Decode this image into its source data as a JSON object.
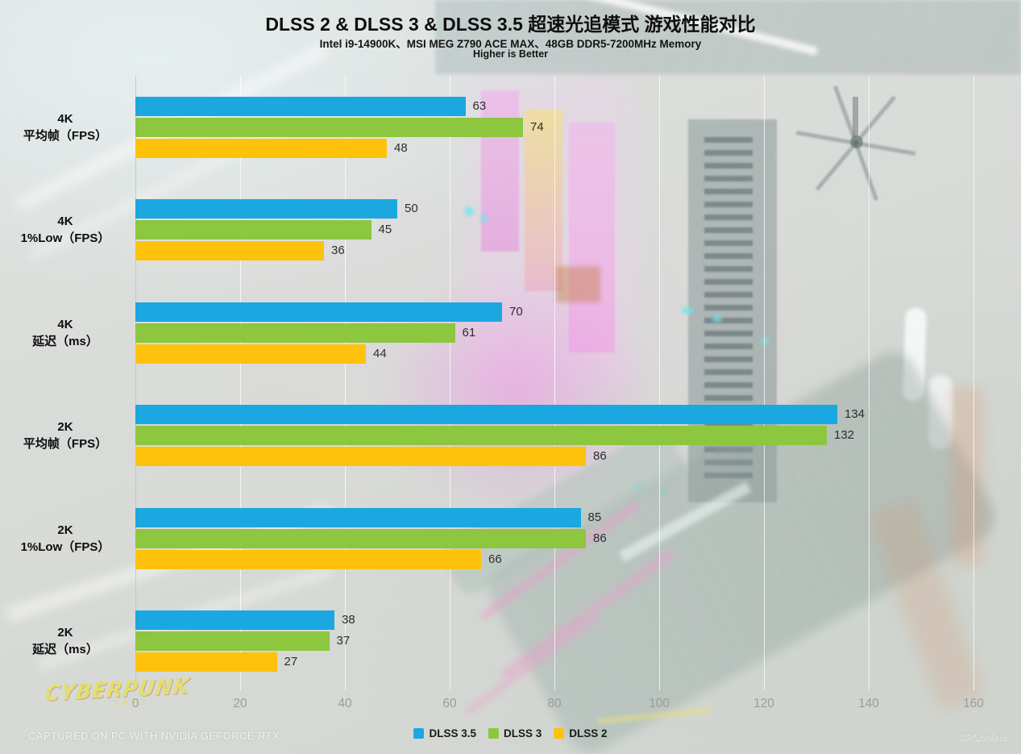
{
  "header": {
    "title": "DLSS 2 & DLSS 3 & DLSS 3.5 超速光追模式 游戏性能对比",
    "subtitle": "Intel i9-14900K、MSI MEG Z790 ACE MAX、48GB DDR5-7200MHz Memory",
    "note": "Higher is Better"
  },
  "chart_data": {
    "type": "bar",
    "orientation": "horizontal",
    "title": "DLSS 2 & DLSS 3 & DLSS 3.5 超速光追模式 游戏性能对比",
    "categories": [
      {
        "line1": "4K",
        "line2": "平均帧（FPS）"
      },
      {
        "line1": "4K",
        "line2": "1%Low（FPS）"
      },
      {
        "line1": "4K",
        "line2": "延迟（ms）"
      },
      {
        "line1": "2K",
        "line2": "平均帧（FPS）"
      },
      {
        "line1": "2K",
        "line2": "1%Low（FPS）"
      },
      {
        "line1": "2K",
        "line2": "延迟（ms）"
      }
    ],
    "series": [
      {
        "name": "DLSS 3.5",
        "color": "#1ba7e0",
        "values": [
          63,
          50,
          70,
          134,
          85,
          38
        ]
      },
      {
        "name": "DLSS 3",
        "color": "#8dc63f",
        "values": [
          74,
          45,
          61,
          132,
          86,
          37
        ]
      },
      {
        "name": "DLSS 2",
        "color": "#fec20d",
        "values": [
          48,
          36,
          44,
          86,
          66,
          27
        ]
      }
    ],
    "xlim": [
      0,
      160
    ],
    "x_ticks": [
      0,
      20,
      40,
      60,
      80,
      100,
      120,
      140,
      160
    ],
    "grid": true,
    "legend_position": "bottom-center",
    "value_labels": true
  },
  "footer": {
    "logo_text": "CYBERPUNK",
    "logo_year": "2077",
    "caption": "CAPTURED ON PC WITH NVIDIA GEFORCE RTX",
    "watermark": "©PConline"
  }
}
